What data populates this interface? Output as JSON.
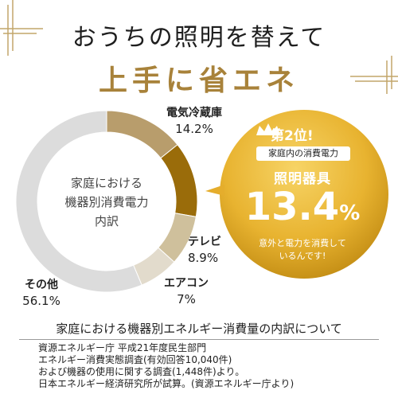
{
  "header": {
    "title_line1": "おうちの照明を替えて",
    "title_line2": "上手に省エネ"
  },
  "chart_data": {
    "type": "pie",
    "title": "家庭における機器別消費電力内訳",
    "center_label_lines": [
      "家庭における",
      "機器別消費電力",
      "内訳"
    ],
    "categories": [
      "電気冷蔵庫",
      "照明器具",
      "テレビ",
      "エアコン",
      "その他"
    ],
    "values": [
      14.2,
      13.4,
      8.9,
      7,
      56.1
    ],
    "value_labels": [
      "14.2%",
      "13.4%",
      "8.9%",
      "7%",
      "56.1%"
    ],
    "colors": [
      "#b89d6c",
      "#9a6c0a",
      "#cfc09c",
      "#e2dbcc",
      "#dcdcdc"
    ],
    "label_categories": [
      "電気冷蔵庫",
      "テレビ",
      "エアコン",
      "その他"
    ],
    "label_values": [
      "14.2%",
      "8.9%",
      "7%",
      "56.1%"
    ]
  },
  "badge": {
    "rank": "第2位!",
    "subtitle": "家庭内の消費電力",
    "category": "照明器具",
    "percent_number": "13.4",
    "percent_sign": "%",
    "note_line1": "意外と電力を消費して",
    "note_line2": "いるんです!",
    "crown_icon": "crown-icon",
    "colors": {
      "gold_light": "#f3c64a",
      "gold_dark": "#c08a12"
    }
  },
  "notes": {
    "title": "家庭における機器別エネルギー消費量の内訳について",
    "lines": [
      "資源エネルギー庁 平成21年度民生部門",
      "エネルギー消費実態調査(有効回答10,040件)",
      "および機器の使用に関する調査(1,448件)より。",
      "日本エネルギー経済研究所が試算。(資源エネルギー庁より)"
    ]
  },
  "accent_color": "#a8823a"
}
